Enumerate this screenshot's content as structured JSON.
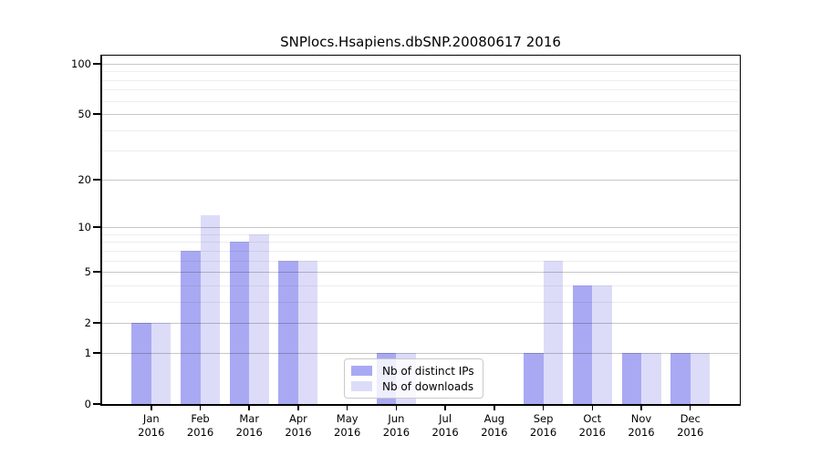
{
  "chart_data": {
    "type": "bar",
    "title": "SNPlocs.Hsapiens.dbSNP.20080617 2016",
    "x_categories_line1": [
      "Jan",
      "Feb",
      "Mar",
      "Apr",
      "May",
      "Jun",
      "Jul",
      "Aug",
      "Sep",
      "Oct",
      "Nov",
      "Dec"
    ],
    "x_categories_line2": "2016",
    "series": [
      {
        "name": "Nb of distinct IPs",
        "color": "#a9a9f3",
        "values": [
          2,
          7,
          8,
          6,
          0,
          1,
          0,
          0,
          1,
          4,
          1,
          1
        ]
      },
      {
        "name": "Nb of downloads",
        "color": "#dcdcf9",
        "values": [
          2,
          12,
          9,
          6,
          0,
          1,
          0,
          0,
          6,
          4,
          1,
          1
        ]
      }
    ],
    "yscale": "log1p",
    "ylim": [
      0,
      115
    ],
    "yticks": [
      0,
      1,
      2,
      5,
      10,
      20,
      50,
      100
    ],
    "minor_yticks": [
      3,
      4,
      6,
      7,
      8,
      9,
      30,
      40,
      60,
      70,
      80,
      90
    ],
    "grid": true,
    "legend_position": "inside-bottom-center"
  },
  "colors": {
    "bar_distinct_ips": "#a9a9f3",
    "bar_downloads": "#dcdcf9",
    "major_grid": "#c6c6c6",
    "minor_grid": "#ebebeb",
    "axis": "#000000",
    "background": "#ffffff"
  }
}
